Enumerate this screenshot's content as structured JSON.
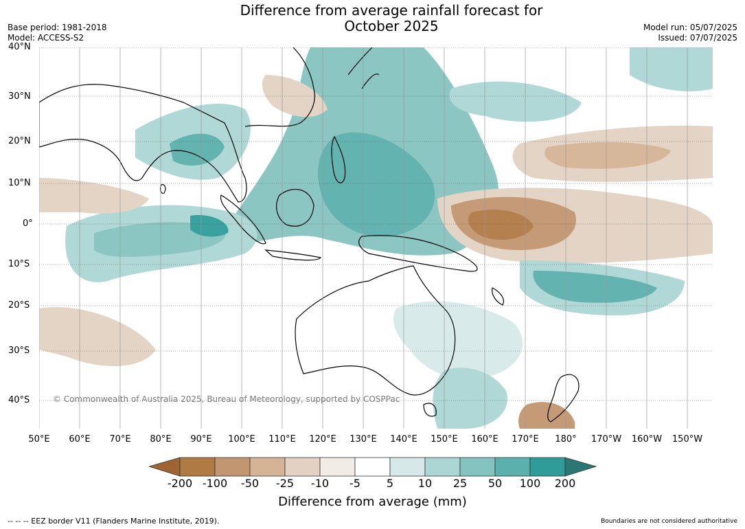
{
  "title": {
    "line1": "Difference from average rainfall forecast for",
    "line2": "October 2025"
  },
  "meta_left": {
    "base_period": "Base period: 1981-2018",
    "model": "Model: ACCESS-S2"
  },
  "meta_right": {
    "model_run": "Model run: 05/07/2025",
    "issued": "Issued: 07/07/2025"
  },
  "lat_labels": [
    "40°N",
    "30°N",
    "20°N",
    "10°N",
    "0°",
    "10°S",
    "20°S",
    "30°S",
    "40°S"
  ],
  "lon_labels": [
    "50°E",
    "60°E",
    "70°E",
    "80°E",
    "90°E",
    "100°E",
    "110°E",
    "120°E",
    "130°E",
    "140°E",
    "150°E",
    "160°E",
    "170°E",
    "180°",
    "170°W",
    "160°W",
    "150°W"
  ],
  "copyright": "© Commonwealth of Australia 2025, Bureau of Meteorology, supported by COSPPac",
  "colorbar": {
    "ticks": [
      "-200",
      "-100",
      "-50",
      "-25",
      "-10",
      "-5",
      "5",
      "10",
      "25",
      "50",
      "100",
      "200"
    ],
    "colors": [
      "#9e6431",
      "#b07a44",
      "#c29670",
      "#d4b494",
      "#e3d2c3",
      "#f2ece6",
      "#ffffff",
      "#d6e9e8",
      "#acd6d4",
      "#85c3c0",
      "#5bb0ad",
      "#2f9c99",
      "#2a7776"
    ],
    "label": "Difference from average (mm)"
  },
  "footer": {
    "left": "--  --  -- EEZ border V11 (Flanders Marine Institute, 2019).",
    "right": "Boundaries are not considered authoritative"
  }
}
